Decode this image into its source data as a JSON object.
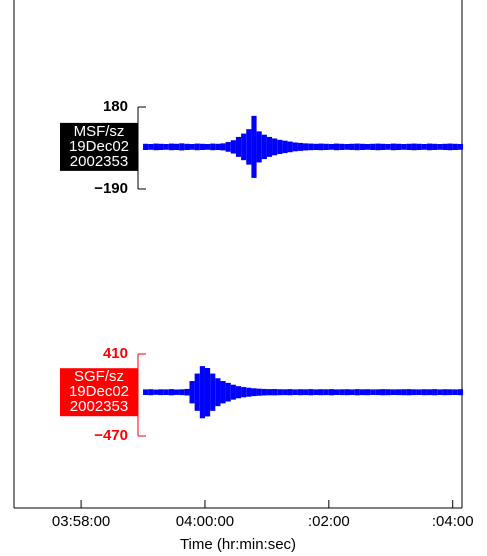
{
  "chart_data": {
    "type": "seismogram",
    "x_label": "Time (hr:min:sec)",
    "xlim": [
      14215,
      14649
    ],
    "xticks": [
      {
        "value": 14280,
        "label": "03:58:00"
      },
      {
        "value": 14400,
        "label": "04:00:00"
      },
      {
        "value": 14520,
        "label": ":02:00"
      },
      {
        "value": 14640,
        "label": ":04:00"
      }
    ],
    "x": [
      14340,
      14345,
      14350,
      14355,
      14360,
      14365,
      14370,
      14375,
      14380,
      14385,
      14390,
      14395,
      14400,
      14405,
      14410,
      14415,
      14420,
      14425,
      14430,
      14435,
      14440,
      14445,
      14450,
      14455,
      14460,
      14465,
      14470,
      14475,
      14480,
      14485,
      14490,
      14495,
      14500,
      14505,
      14510,
      14515,
      14520,
      14525,
      14530,
      14535,
      14540,
      14545,
      14550,
      14555,
      14560,
      14565,
      14570,
      14575,
      14580,
      14585,
      14590,
      14595,
      14600,
      14605,
      14610,
      14615,
      14620,
      14625,
      14630,
      14635,
      14640,
      14645
    ],
    "series": [
      {
        "name": "MSF/sz",
        "date": "19Dec02",
        "day": "2002353",
        "color": "#0000ff",
        "label_color": "#000000",
        "ylim": [
          -190,
          180
        ],
        "yticks": [
          {
            "value": 180,
            "label": "180"
          },
          {
            "value": -190,
            "label": "−190"
          }
        ],
        "values": [
          14,
          13,
          15,
          14,
          13,
          15,
          14,
          16,
          14,
          13,
          15,
          14,
          13,
          15,
          14,
          16,
          22,
          30,
          45,
          60,
          80,
          140,
          70,
          55,
          45,
          38,
          32,
          28,
          24,
          20,
          18,
          16,
          15,
          14,
          15,
          14,
          13,
          15,
          14,
          13,
          14,
          15,
          14,
          13,
          14,
          15,
          14,
          13,
          15,
          14,
          13,
          14,
          15,
          14,
          13,
          15,
          14,
          13,
          14,
          15,
          14,
          13
        ]
      },
      {
        "name": "SGF/sz",
        "date": "19Dec02",
        "day": "2002353",
        "color": "#0000ff",
        "label_color": "#ff0000",
        "ylim": [
          -470,
          410
        ],
        "yticks": [
          {
            "value": 410,
            "label": "410"
          },
          {
            "value": -470,
            "label": "−470"
          }
        ],
        "values": [
          30,
          32,
          28,
          31,
          30,
          33,
          29,
          31,
          35,
          120,
          200,
          280,
          260,
          200,
          150,
          120,
          100,
          80,
          65,
          55,
          48,
          42,
          38,
          35,
          33,
          34,
          32,
          31,
          33,
          30,
          32,
          31,
          33,
          30,
          32,
          31,
          33,
          30,
          31,
          32,
          30,
          33,
          31,
          32,
          30,
          31,
          33,
          32,
          30,
          31,
          32,
          33,
          31,
          30,
          32,
          31,
          33,
          30,
          32,
          31,
          30,
          32
        ]
      }
    ]
  }
}
